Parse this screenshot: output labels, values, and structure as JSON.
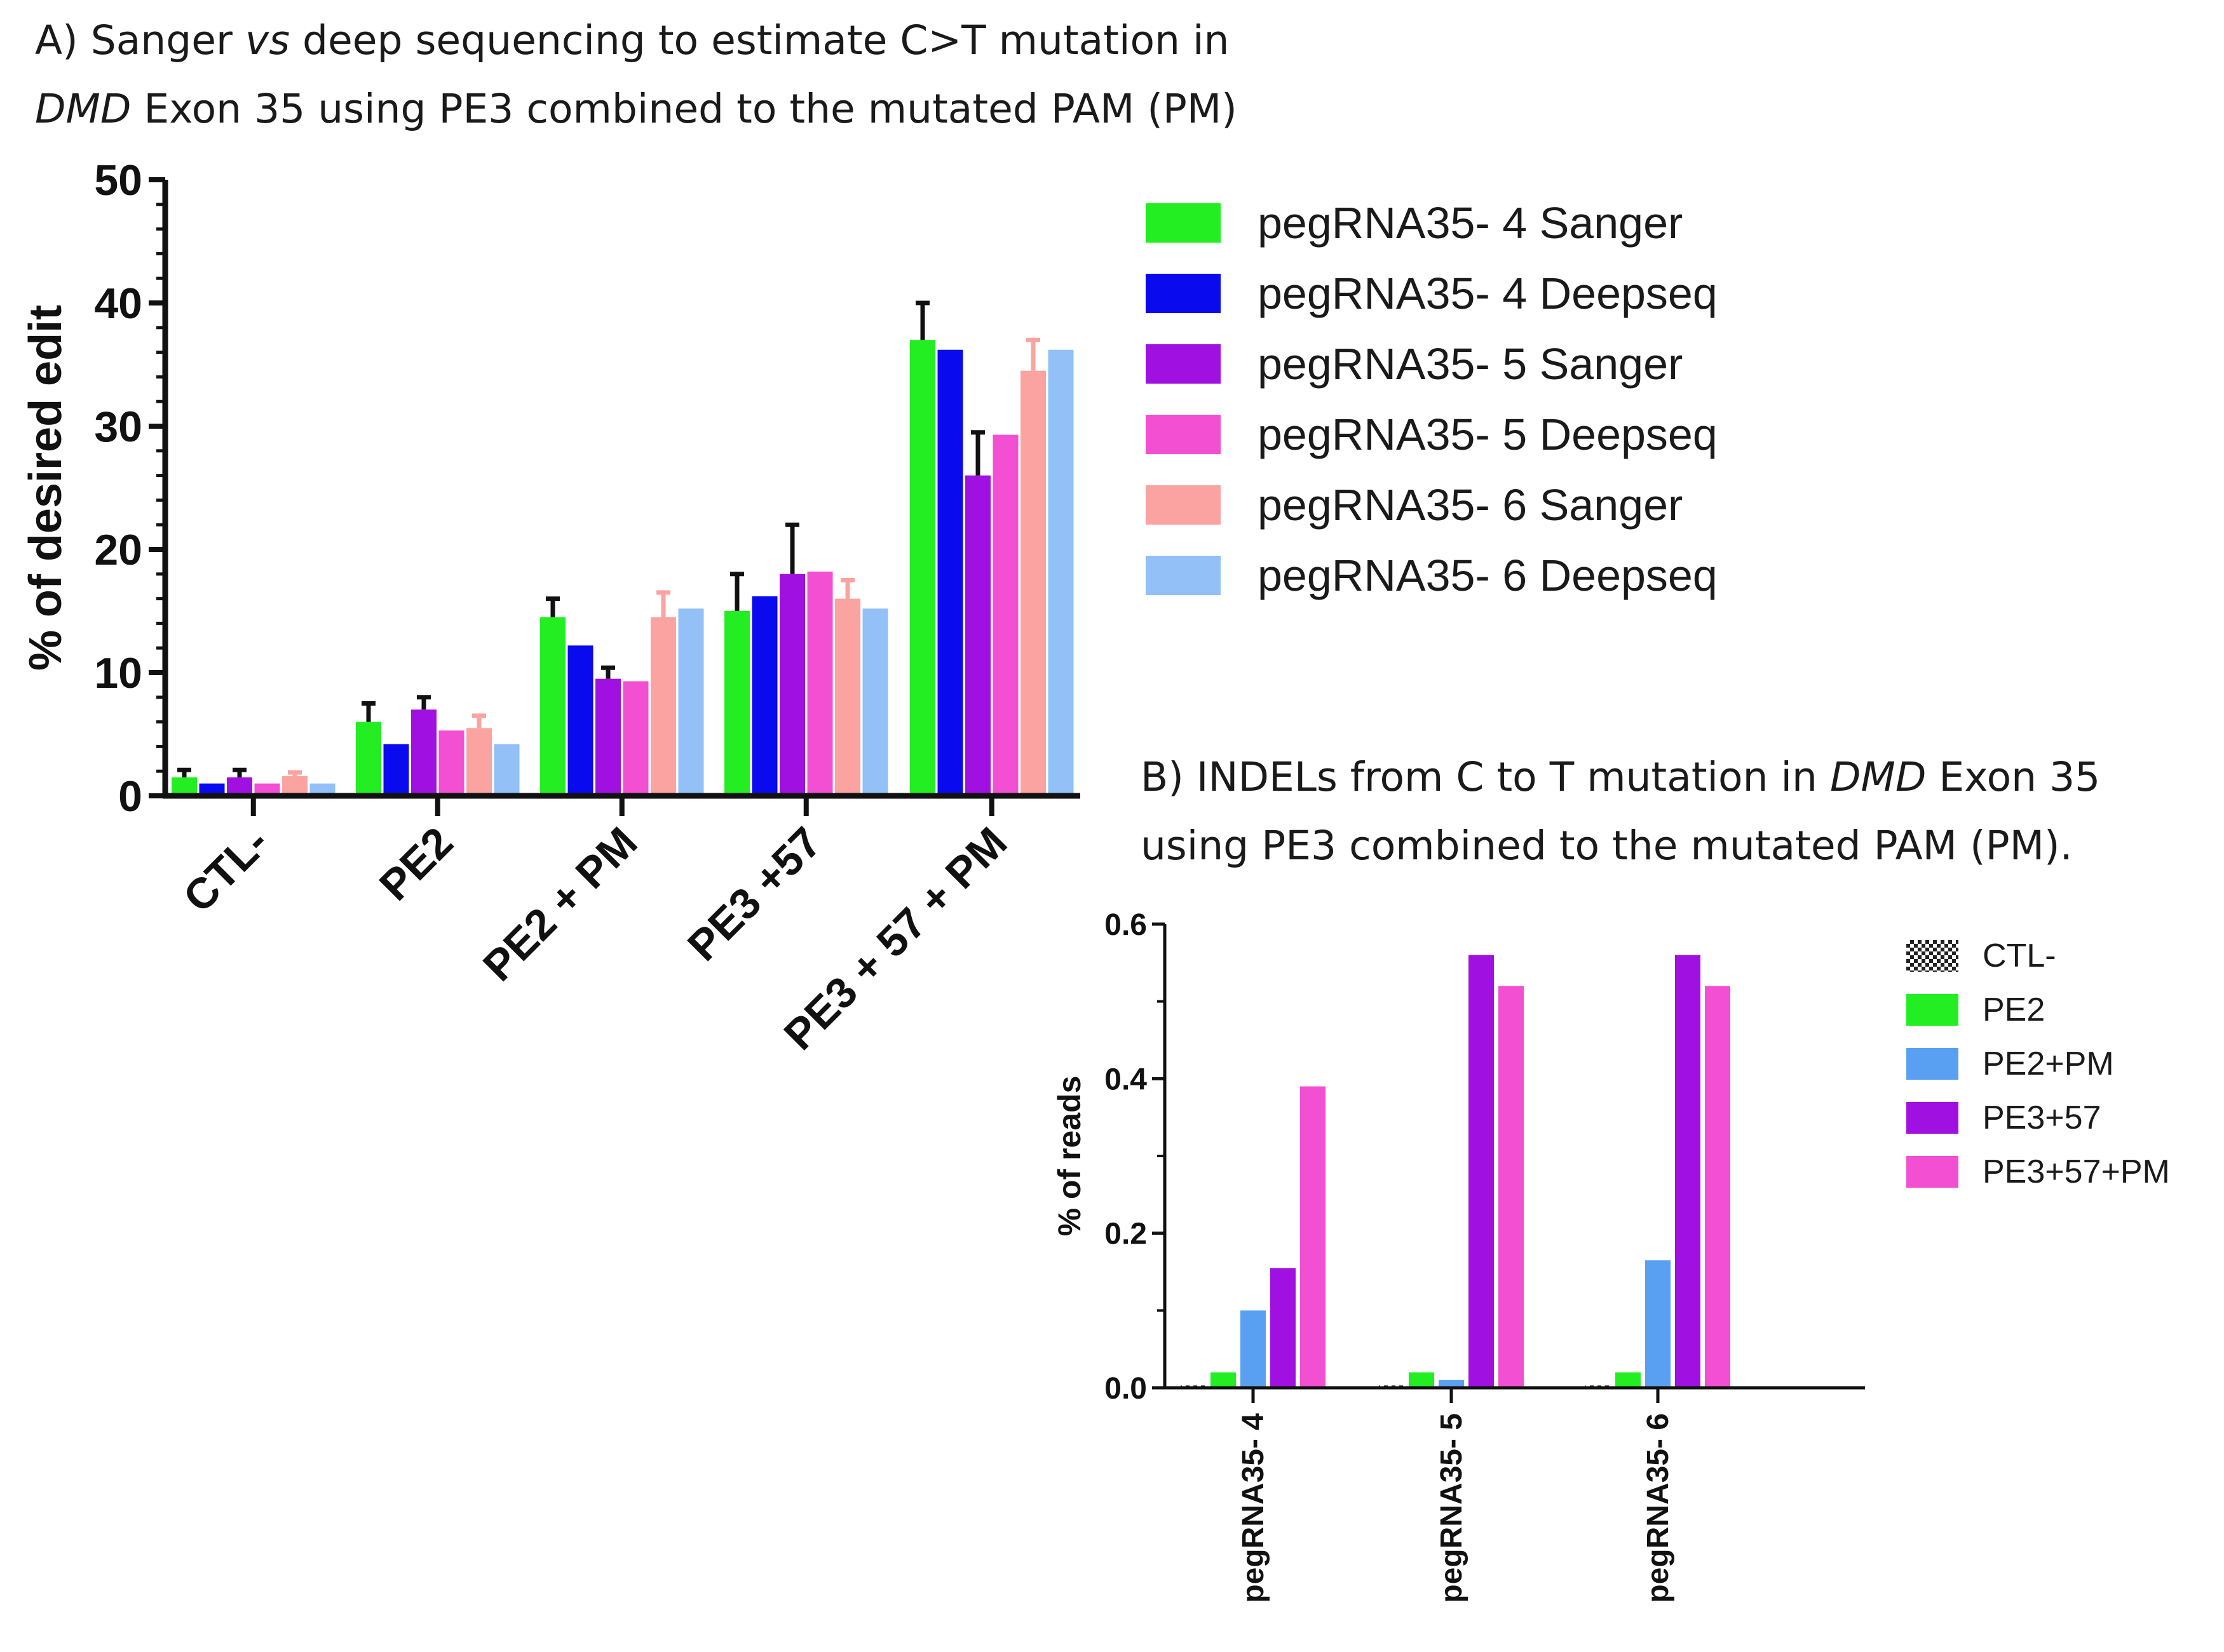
{
  "titles": {
    "a_line1_pre": "A) Sanger ",
    "a_line1_em": "vs",
    "a_line1_post": " deep sequencing to estimate C>T mutation in",
    "a_line2_em": "DMD",
    "a_line2_post": " Exon 35 using PE3 combined to the mutated PAM (PM)",
    "b_line1_pre": "B) INDELs from C to T mutation in ",
    "b_line1_em": "DMD",
    "b_line1_post": " Exon 35",
    "b_line2": "using PE3 combined to the mutated PAM (PM)."
  },
  "chart_data": [
    {
      "id": "panelA",
      "type": "bar",
      "title": "Sanger vs deep sequencing to estimate C>T mutation in DMD Exon 35 using PE3 combined to the mutated PAM (PM)",
      "xlabel": "",
      "ylabel": "% of desired edit",
      "ylim": [
        0,
        50
      ],
      "yticks": [
        0,
        10,
        20,
        30,
        40,
        50
      ],
      "legend_position": "right",
      "categories": [
        "CTL-",
        "PE2",
        "PE2 + PM",
        "PE3 +57",
        "PE3 + 57 + PM"
      ],
      "series": [
        {
          "name": "pegRNA35- 4 Sanger",
          "color": "#22ee22",
          "values": [
            1.5,
            6.0,
            14.5,
            15.0,
            37.0
          ],
          "errors": [
            0.6,
            1.5,
            1.5,
            3.0,
            3.0
          ]
        },
        {
          "name": "pegRNA35- 4 Deepseq",
          "color": "#0a0aee",
          "values": [
            1.0,
            4.2,
            12.2,
            16.2,
            36.2
          ],
          "errors": [
            0,
            0,
            0,
            0,
            0
          ]
        },
        {
          "name": "pegRNA35- 5 Sanger",
          "color": "#a010e0",
          "values": [
            1.5,
            7.0,
            9.5,
            18.0,
            26.0
          ],
          "errors": [
            0.6,
            1.0,
            0.9,
            4.0,
            3.5
          ]
        },
        {
          "name": "pegRNA35- 5 Deepseq",
          "color": "#f24fd2",
          "values": [
            1.0,
            5.3,
            9.3,
            18.2,
            29.3
          ],
          "errors": [
            0,
            0,
            0,
            0,
            0
          ]
        },
        {
          "name": "pegRNA35- 6 Sanger",
          "color": "#fba3a0",
          "values": [
            1.6,
            5.5,
            14.5,
            16.0,
            34.5
          ],
          "errors": [
            0.3,
            1.0,
            2.0,
            1.5,
            2.5
          ]
        },
        {
          "name": "pegRNA35- 6 Deepseq",
          "color": "#92c0f7",
          "values": [
            1.0,
            4.2,
            15.2,
            15.2,
            36.2
          ],
          "errors": [
            0,
            0,
            0,
            0,
            0
          ]
        }
      ]
    },
    {
      "id": "panelB",
      "type": "bar",
      "title": "INDELs from C to T mutation in DMD Exon 35 using PE3 combined to the mutated PAM (PM).",
      "xlabel": "",
      "ylabel": "% of reads",
      "ylim": [
        0,
        0.6
      ],
      "yticks": [
        "0.0",
        "0.2",
        "0.4",
        "0.6"
      ],
      "legend_position": "right",
      "categories": [
        "pegRNA35- 4",
        "pegRNA35- 5",
        "pegRNA35- 6"
      ],
      "series": [
        {
          "name": "CTL-",
          "color": "#222222",
          "pattern": "checker",
          "values": [
            0.003,
            0.003,
            0.003
          ]
        },
        {
          "name": "PE2",
          "color": "#22ee22",
          "values": [
            0.02,
            0.02,
            0.02
          ]
        },
        {
          "name": "PE2+PM",
          "color": "#5aa0f2",
          "values": [
            0.1,
            0.01,
            0.165
          ]
        },
        {
          "name": "PE3+57",
          "color": "#a010e0",
          "values": [
            0.155,
            0.56,
            0.56
          ]
        },
        {
          "name": "PE3+57+PM",
          "color": "#f24fd2",
          "values": [
            0.39,
            0.52,
            0.52
          ]
        }
      ]
    }
  ]
}
